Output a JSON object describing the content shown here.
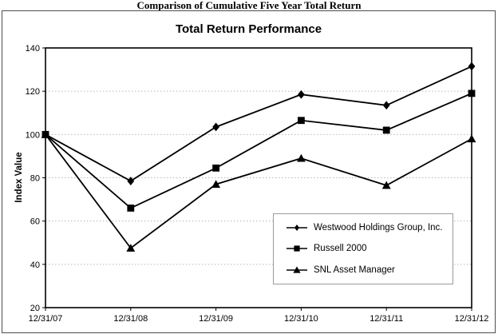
{
  "header": {
    "title": "Comparison of Cumulative Five Year Total Return"
  },
  "chart": {
    "title": "Total Return Performance"
  },
  "chart_data": {
    "type": "line",
    "title": "Total Return Performance",
    "categories": [
      "12/31/07",
      "12/31/08",
      "12/31/09",
      "12/31/10",
      "12/31/11",
      "12/31/12"
    ],
    "series": [
      {
        "name": "Westwood Holdings Group, Inc.",
        "marker": "diamond",
        "values": [
          100,
          78.5,
          103.5,
          118.5,
          113.5,
          131.5
        ]
      },
      {
        "name": "Russell 2000",
        "marker": "square",
        "values": [
          100,
          66,
          84.5,
          106.5,
          102,
          119
        ]
      },
      {
        "name": "SNL Asset Manager",
        "marker": "triangle",
        "values": [
          100,
          47.5,
          77,
          89,
          76.5,
          98
        ]
      }
    ],
    "xlabel": "",
    "ylabel": "Index Value",
    "ylim": [
      20,
      140
    ],
    "ytick_step": 20,
    "grid": "horizontal-dotted",
    "legend_position": "inside-lower-right",
    "colors": {
      "line": "#000000",
      "grid": "#b8b8b8",
      "frame": "#000000",
      "text": "#000000",
      "background": "#ffffff"
    }
  }
}
